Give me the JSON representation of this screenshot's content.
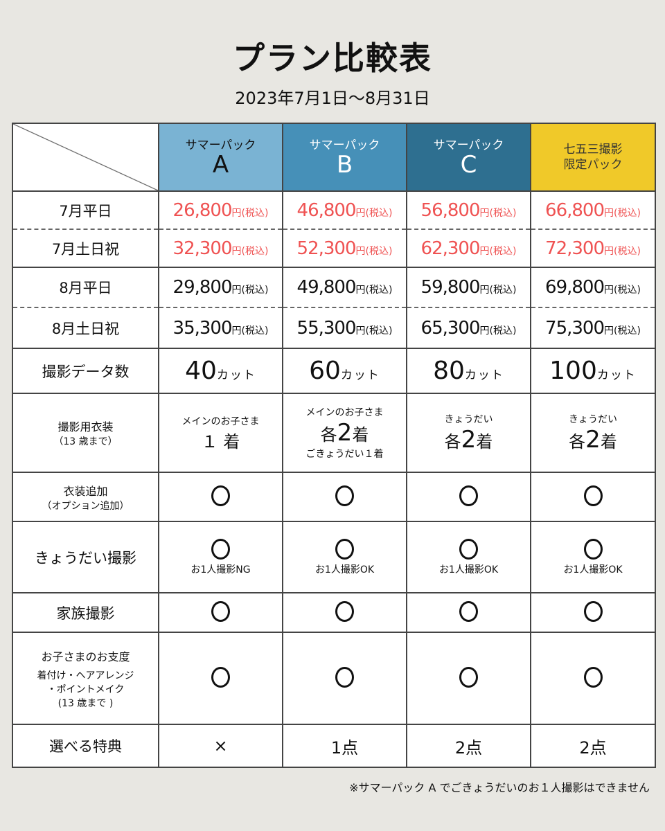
{
  "title": "プラン比較表",
  "period": "2023年7月1日〜8月31日",
  "colors": {
    "plan_a": "#7ab3d3",
    "plan_b": "#4690b8",
    "plan_c": "#2e6f90",
    "plan_d": "#f0c929",
    "july_price": "#ef5252"
  },
  "plans": [
    {
      "line1": "サマーパック",
      "line2": "A"
    },
    {
      "line1": "サマーパック",
      "line2": "B"
    },
    {
      "line1": "サマーパック",
      "line2": "C"
    },
    {
      "line1": "七五三撮影",
      "line2": "限定パック"
    }
  ],
  "yen": "円",
  "tax": "(税込)",
  "prices": [
    {
      "label": "7月平日",
      "values": [
        "26,800",
        "46,800",
        "56,800",
        "66,800"
      ]
    },
    {
      "label": "7月土日祝",
      "values": [
        "32,300",
        "52,300",
        "62,300",
        "72,300"
      ]
    },
    {
      "label": "8月平日",
      "values": [
        "29,800",
        "49,800",
        "59,800",
        "69,800"
      ]
    },
    {
      "label": "8月土日祝",
      "values": [
        "35,300",
        "55,300",
        "65,300",
        "75,300"
      ]
    }
  ],
  "data_count": {
    "label": "撮影データ数",
    "unit": "カット",
    "values": [
      "40",
      "60",
      "80",
      "100"
    ]
  },
  "costume": {
    "label": "撮影用衣装",
    "sub": "（13 歳まで）",
    "a": {
      "top": "メインのお子さま",
      "main_num": "１",
      "main_unit": "着"
    },
    "b": {
      "top": "メインのお子さま",
      "pre": "各",
      "num": "2",
      "unit": "着",
      "bottom": "ごきょうだい１着"
    },
    "c": {
      "top": "きょうだい",
      "pre": "各",
      "num": "2",
      "unit": "着"
    },
    "d": {
      "top": "きょうだい",
      "pre": "各",
      "num": "2",
      "unit": "着"
    }
  },
  "costume_add": {
    "label": "衣装追加",
    "sub": "（オプション追加）"
  },
  "siblings": {
    "label": "きょうだい撮影",
    "notes": [
      "お1人撮影NG",
      "お1人撮影OK",
      "お1人撮影OK",
      "お1人撮影OK"
    ]
  },
  "family": {
    "label": "家族撮影"
  },
  "prep": {
    "label": "お子さまのお支度",
    "sub1": "着付け・ヘアアレンジ",
    "sub2": "・ポイントメイク",
    "sub3": "(13 歳まで )"
  },
  "bonus": {
    "label": "選べる特典",
    "values": [
      "×",
      "1点",
      "2点",
      "2点"
    ]
  },
  "footnote": "※サマーパック A でごきょうだいのお１人撮影はできません"
}
